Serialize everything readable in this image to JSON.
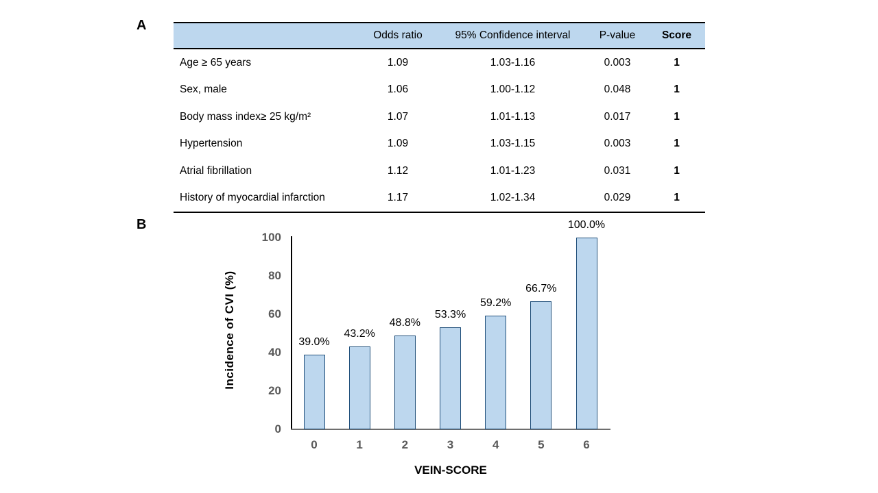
{
  "panels": {
    "a_label": "A",
    "b_label": "B"
  },
  "table": {
    "headers": [
      "",
      "Odds ratio",
      "95% Confidence interval",
      "P-value",
      "Score"
    ],
    "rows": [
      {
        "label": "Age ≥ 65 years",
        "odds_ratio": "1.09",
        "ci": "1.03-1.16",
        "p_value": "0.003",
        "score": "1"
      },
      {
        "label": "Sex, male",
        "odds_ratio": "1.06",
        "ci": "1.00-1.12",
        "p_value": "0.048",
        "score": "1"
      },
      {
        "label": "Body mass index≥  25 kg/m²",
        "odds_ratio": "1.07",
        "ci": "1.01-1.13",
        "p_value": "0.017",
        "score": "1"
      },
      {
        "label": "Hypertension",
        "odds_ratio": "1.09",
        "ci": "1.03-1.15",
        "p_value": "0.003",
        "score": "1"
      },
      {
        "label": "Atrial fibrillation",
        "odds_ratio": "1.12",
        "ci": "1.01-1.23",
        "p_value": "0.031",
        "score": "1"
      },
      {
        "label": "History of myocardial infarction",
        "odds_ratio": "1.17",
        "ci": "1.02-1.34",
        "p_value": "0.029",
        "score": "1"
      }
    ]
  },
  "chart_data": {
    "type": "bar",
    "categories": [
      "0",
      "1",
      "2",
      "3",
      "4",
      "5",
      "6"
    ],
    "values": [
      39.0,
      43.2,
      48.8,
      53.3,
      59.2,
      66.7,
      100.0
    ],
    "data_labels": [
      "39.0%",
      "43.2%",
      "48.8%",
      "53.3%",
      "59.2%",
      "66.7%",
      "100.0%"
    ],
    "title": "",
    "xlabel": "VEIN-SCORE",
    "ylabel": "Incidence of CVI (%)",
    "ylim": [
      0,
      100
    ],
    "yticks": [
      0,
      20,
      40,
      60,
      80,
      100
    ],
    "grid": false,
    "legend_position": "none"
  },
  "colors": {
    "header_fill": "#BDD7EE",
    "bar_fill": "#BDD7EE",
    "bar_border": "#1F4E79",
    "tick_label": "#595959",
    "y_axis_line": "#000000",
    "x_axis_line": "#6E6E6E",
    "table_line": "#000000"
  }
}
